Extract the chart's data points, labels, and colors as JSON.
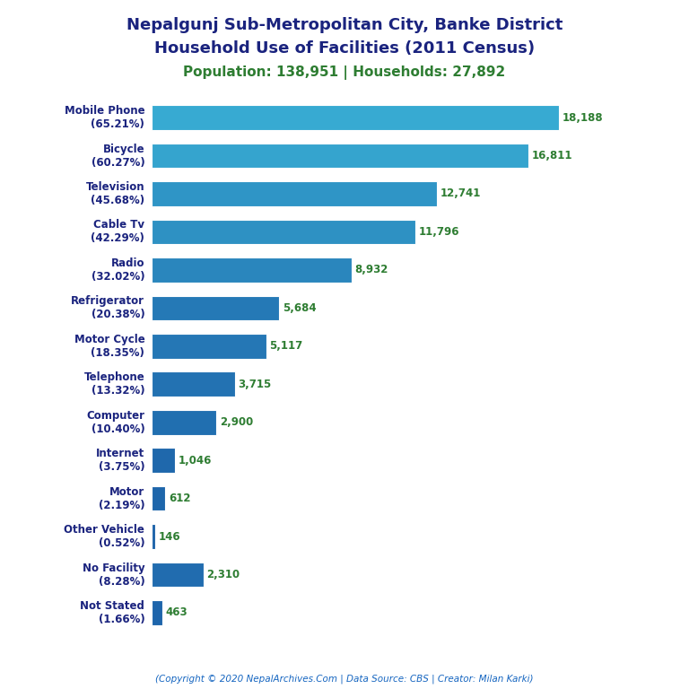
{
  "title_line1": "Nepalgunj Sub-Metropolitan City, Banke District",
  "title_line2": "Household Use of Facilities (2011 Census)",
  "subtitle": "Population: 138,951 | Households: 27,892",
  "footer": "(Copyright © 2020 NepalArchives.Com | Data Source: CBS | Creator: Milan Karki)",
  "categories": [
    "Mobile Phone\n(65.21%)",
    "Bicycle\n(60.27%)",
    "Television\n(45.68%)",
    "Cable Tv\n(42.29%)",
    "Radio\n(32.02%)",
    "Refrigerator\n(20.38%)",
    "Motor Cycle\n(18.35%)",
    "Telephone\n(13.32%)",
    "Computer\n(10.40%)",
    "Internet\n(3.75%)",
    "Motor\n(2.19%)",
    "Other Vehicle\n(0.52%)",
    "No Facility\n(8.28%)",
    "Not Stated\n(1.66%)"
  ],
  "values": [
    18188,
    16811,
    12741,
    11796,
    8932,
    5684,
    5117,
    3715,
    2900,
    1046,
    612,
    146,
    2310,
    463
  ],
  "value_labels": [
    "18,188",
    "16,811",
    "12,741",
    "11,796",
    "8,932",
    "5,684",
    "5,117",
    "3,715",
    "2,900",
    "1,046",
    "612",
    "146",
    "2,310",
    "463"
  ],
  "title_color": "#1a237e",
  "subtitle_color": "#2e7d32",
  "footer_color": "#1565c0",
  "label_color": "#2e7d32",
  "ylabel_color": "#1a237e",
  "background_color": "#ffffff",
  "xlim": [
    0,
    20000
  ]
}
